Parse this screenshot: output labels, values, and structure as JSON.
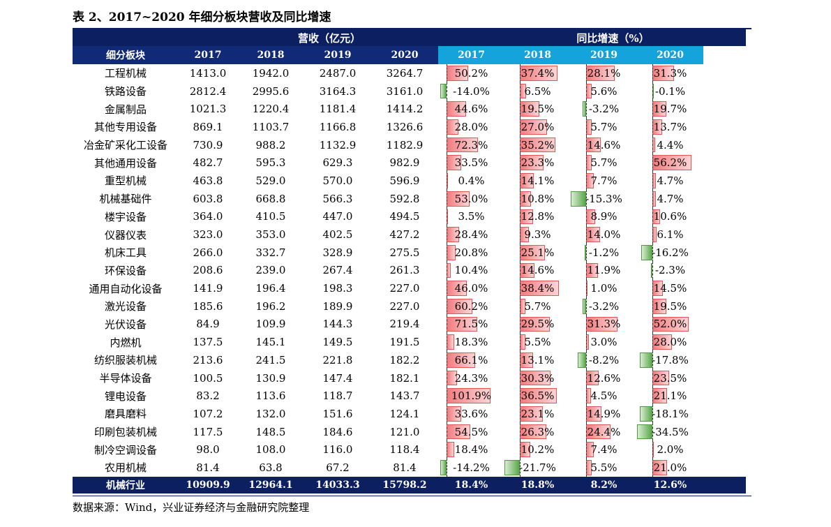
{
  "title": "表 2、2017~2020 年细分板块营收及同比增速",
  "header": {
    "group_revenue": "营收（亿元）",
    "group_growth": "同比增速（%）",
    "segment_label": "细分板块",
    "years": [
      "2017",
      "2018",
      "2019",
      "2020"
    ]
  },
  "rows": [
    {
      "name": "工程机械",
      "rev": [
        "1413.0",
        "1942.0",
        "2487.0",
        "3264.7"
      ],
      "yoy": [
        "50.2%",
        "37.4%",
        "28.1%",
        "31.3%"
      ]
    },
    {
      "name": "铁路设备",
      "rev": [
        "2812.4",
        "2995.6",
        "3164.3",
        "3161.0"
      ],
      "yoy": [
        "-14.0%",
        "6.5%",
        "5.6%",
        "-0.1%"
      ]
    },
    {
      "name": "金属制品",
      "rev": [
        "1021.3",
        "1220.4",
        "1181.4",
        "1414.2"
      ],
      "yoy": [
        "44.6%",
        "19.5%",
        "-3.2%",
        "19.7%"
      ]
    },
    {
      "name": "其他专用设备",
      "rev": [
        "869.1",
        "1103.7",
        "1166.8",
        "1326.6"
      ],
      "yoy": [
        "28.0%",
        "27.0%",
        "5.7%",
        "13.7%"
      ]
    },
    {
      "name": "冶金矿采化工设备",
      "rev": [
        "730.9",
        "988.2",
        "1132.9",
        "1182.9"
      ],
      "yoy": [
        "72.3%",
        "35.2%",
        "14.6%",
        "4.4%"
      ]
    },
    {
      "name": "其他通用设备",
      "rev": [
        "482.7",
        "595.3",
        "629.3",
        "982.9"
      ],
      "yoy": [
        "33.5%",
        "23.3%",
        "5.7%",
        "56.2%"
      ]
    },
    {
      "name": "重型机械",
      "rev": [
        "463.8",
        "529.0",
        "570.0",
        "596.9"
      ],
      "yoy": [
        "0.4%",
        "14.1%",
        "7.7%",
        "4.7%"
      ]
    },
    {
      "name": "机械基础件",
      "rev": [
        "603.8",
        "668.8",
        "566.3",
        "592.8"
      ],
      "yoy": [
        "53.0%",
        "10.8%",
        "-15.3%",
        "4.7%"
      ]
    },
    {
      "name": "楼宇设备",
      "rev": [
        "364.0",
        "410.5",
        "447.0",
        "494.5"
      ],
      "yoy": [
        "3.5%",
        "12.8%",
        "8.9%",
        "10.6%"
      ]
    },
    {
      "name": "仪器仪表",
      "rev": [
        "323.0",
        "353.0",
        "402.5",
        "427.2"
      ],
      "yoy": [
        "28.4%",
        "9.3%",
        "14.0%",
        "6.1%"
      ]
    },
    {
      "name": "机床工具",
      "rev": [
        "266.0",
        "332.7",
        "328.9",
        "275.5"
      ],
      "yoy": [
        "20.8%",
        "25.1%",
        "-1.2%",
        "-16.2%"
      ]
    },
    {
      "name": "环保设备",
      "rev": [
        "208.6",
        "239.0",
        "267.4",
        "261.3"
      ],
      "yoy": [
        "10.4%",
        "14.6%",
        "11.9%",
        "-2.3%"
      ]
    },
    {
      "name": "通用自动化设备",
      "rev": [
        "141.9",
        "196.4",
        "198.3",
        "227.0"
      ],
      "yoy": [
        "46.0%",
        "38.4%",
        "1.0%",
        "14.5%"
      ]
    },
    {
      "name": "激光设备",
      "rev": [
        "185.6",
        "196.2",
        "189.9",
        "227.0"
      ],
      "yoy": [
        "60.2%",
        "5.7%",
        "-3.2%",
        "19.5%"
      ]
    },
    {
      "name": "光伏设备",
      "rev": [
        "84.9",
        "109.9",
        "144.3",
        "219.4"
      ],
      "yoy": [
        "71.5%",
        "29.5%",
        "31.3%",
        "52.0%"
      ]
    },
    {
      "name": "内燃机",
      "rev": [
        "137.5",
        "145.1",
        "149.5",
        "191.5"
      ],
      "yoy": [
        "18.3%",
        "5.5%",
        "3.0%",
        "28.0%"
      ]
    },
    {
      "name": "纺织服装机械",
      "rev": [
        "213.6",
        "241.5",
        "221.8",
        "182.2"
      ],
      "yoy": [
        "66.1%",
        "13.1%",
        "-8.2%",
        "-17.8%"
      ]
    },
    {
      "name": "半导体设备",
      "rev": [
        "100.5",
        "130.9",
        "147.4",
        "182.1"
      ],
      "yoy": [
        "24.3%",
        "30.3%",
        "12.6%",
        "23.5%"
      ]
    },
    {
      "name": "锂电设备",
      "rev": [
        "83.2",
        "113.6",
        "118.7",
        "143.7"
      ],
      "yoy": [
        "101.9%",
        "36.5%",
        "4.5%",
        "21.1%"
      ]
    },
    {
      "name": "磨具磨料",
      "rev": [
        "107.2",
        "132.0",
        "151.6",
        "124.1"
      ],
      "yoy": [
        "33.6%",
        "23.1%",
        "14.9%",
        "-18.1%"
      ]
    },
    {
      "name": "印刷包装机械",
      "rev": [
        "117.5",
        "148.5",
        "184.6",
        "121.0"
      ],
      "yoy": [
        "54.5%",
        "26.3%",
        "24.4%",
        "-34.5%"
      ]
    },
    {
      "name": "制冷空调设备",
      "rev": [
        "98.0",
        "108.0",
        "116.0",
        "118.4"
      ],
      "yoy": [
        "18.4%",
        "10.2%",
        "7.4%",
        "2.0%"
      ]
    },
    {
      "name": "农用机械",
      "rev": [
        "81.4",
        "63.8",
        "67.2",
        "81.4"
      ],
      "yoy": [
        "-14.2%",
        "-21.7%",
        "5.5%",
        "21.0%"
      ]
    }
  ],
  "total": {
    "name": "机械行业",
    "rev": [
      "10909.9",
      "12964.1",
      "14033.3",
      "15798.2"
    ],
    "yoy": [
      "18.4%",
      "18.8%",
      "8.2%",
      "12.6%"
    ]
  },
  "source": "数据来源：Wind，兴业证券经济与金融研究院整理",
  "colors": {
    "header_dark": "#0b1f61",
    "header_blue": "#14a3da",
    "bar_pos": "#f27b7e",
    "bar_neg": "#5aa84b"
  }
}
